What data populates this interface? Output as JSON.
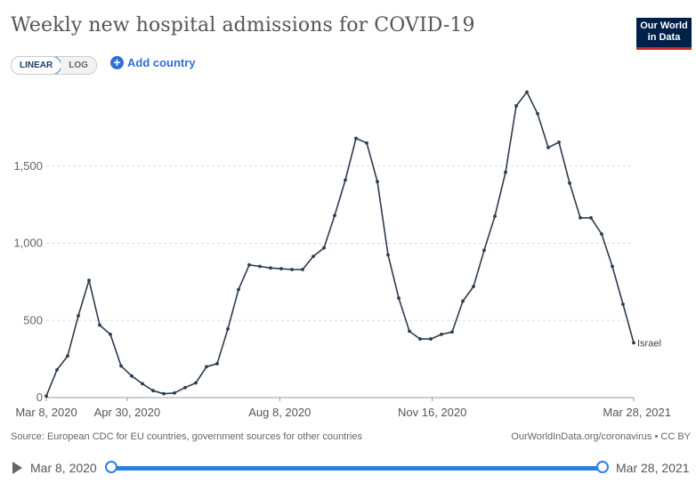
{
  "title": "Weekly new hospital admissions for COVID-19",
  "logo": {
    "line1": "Our World",
    "line2": "in Data"
  },
  "controls": {
    "linear_label": "LINEAR",
    "log_label": "LOG",
    "add_country_label": "Add country"
  },
  "footer": {
    "source": "Source: European CDC for EU countries, government sources for other countries",
    "credit": "OurWorldInData.org/coronavirus • CC BY"
  },
  "timeline": {
    "start": "Mar 8, 2020",
    "end": "Mar 28, 2021"
  },
  "colors": {
    "line": "#2d3b4e",
    "accent": "#2f7fe0"
  },
  "chart_data": {
    "type": "line",
    "title": "Weekly new hospital admissions for COVID-19",
    "x_tick_labels": [
      "Mar 8, 2020",
      "Apr 30, 2020",
      "Aug 8, 2020",
      "Nov 16, 2020",
      "Mar 28, 2021"
    ],
    "y_tick_labels": [
      "0",
      "500",
      "1,000",
      "1,500"
    ],
    "y_ticks": [
      0,
      500,
      1000,
      1500
    ],
    "ylim": [
      0,
      2000
    ],
    "grid": true,
    "series": [
      {
        "name": "Israel",
        "start_date": "2020-03-08",
        "end_date": "2021-03-28",
        "values": [
          10,
          180,
          270,
          530,
          760,
          470,
          410,
          205,
          140,
          90,
          45,
          25,
          30,
          65,
          95,
          200,
          220,
          445,
          700,
          860,
          850,
          840,
          835,
          830,
          830,
          915,
          970,
          1180,
          1410,
          1680,
          1650,
          1400,
          925,
          645,
          430,
          380,
          380,
          410,
          425,
          625,
          720,
          955,
          1175,
          1460,
          1890,
          1980,
          1840,
          1620,
          1655,
          1390,
          1165,
          1165,
          1060,
          850,
          605,
          355
        ]
      }
    ]
  }
}
